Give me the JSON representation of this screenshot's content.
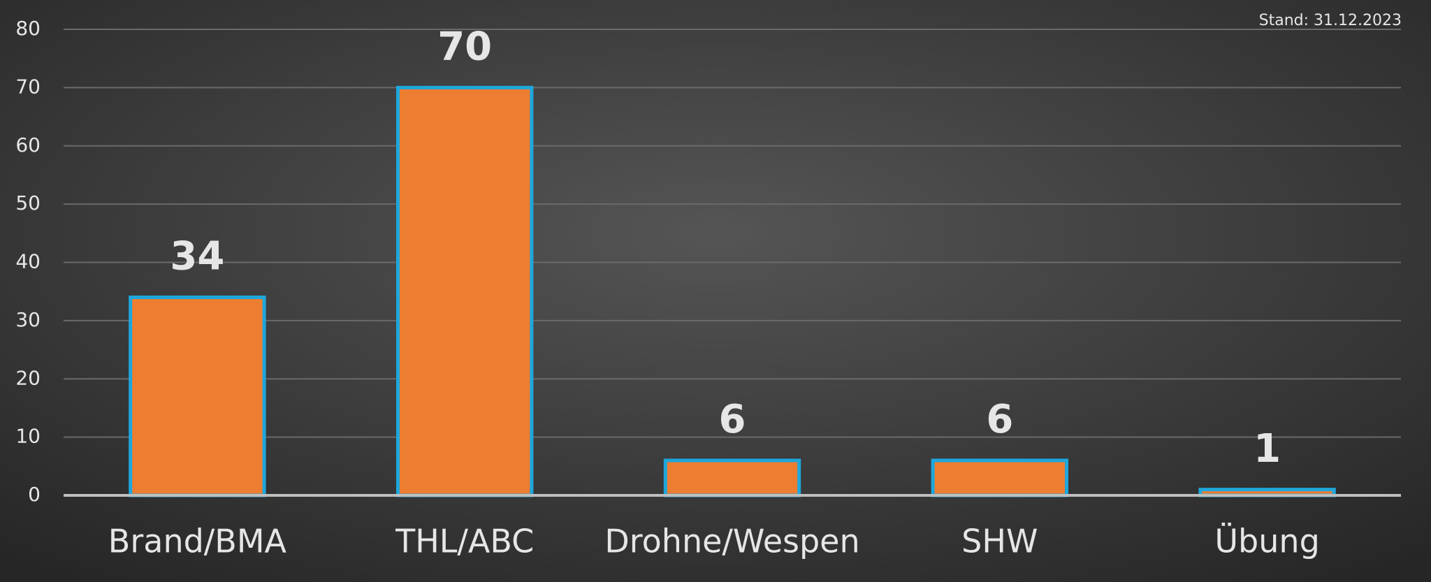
{
  "chart_data": {
    "type": "bar",
    "annotation": "Stand: 31.12.2023",
    "categories": [
      "Brand/BMA",
      "THL/ABC",
      "Drohne/Wespen",
      "SHW",
      "Übung"
    ],
    "values": [
      34,
      70,
      6,
      6,
      1
    ],
    "color": "#ed7d31",
    "edge_color": "#1ea7dc",
    "ylim": [
      0,
      80
    ],
    "yticks": [
      0,
      10,
      20,
      30,
      40,
      50,
      60,
      70,
      80
    ],
    "grid": true
  }
}
